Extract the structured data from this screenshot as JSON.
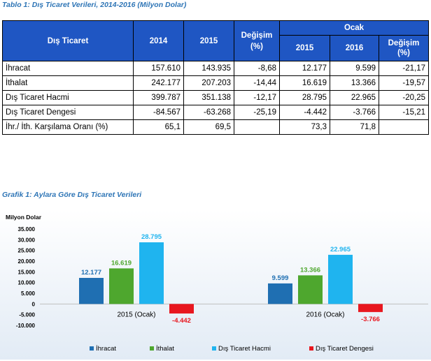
{
  "table": {
    "caption": "Tablo 1: Dış Ticaret Verileri, 2014-2016 (Milyon Dolar)",
    "headers": {
      "category": "Dış Ticaret",
      "y2014": "2014",
      "y2015": "2015",
      "change_top": "Değişim",
      "change_bottom": "(%)",
      "jan_group": "Ocak",
      "jan2015": "2015",
      "jan2016": "2016",
      "jan_change_top": "Değişim",
      "jan_change_bottom": "(%)"
    },
    "rows": [
      {
        "label": "İhracat",
        "y2014": "157.610",
        "y2015": "143.935",
        "change": "-8,68",
        "jan2015": "12.177",
        "jan2016": "9.599",
        "jan_change": "-21,17"
      },
      {
        "label": "İthalat",
        "y2014": "242.177",
        "y2015": "207.203",
        "change": "-14,44",
        "jan2015": "16.619",
        "jan2016": "13.366",
        "jan_change": "-19,57"
      },
      {
        "label": "Dış Ticaret Hacmi",
        "y2014": "399.787",
        "y2015": "351.138",
        "change": "-12,17",
        "jan2015": "28.795",
        "jan2016": "22.965",
        "jan_change": "-20,25"
      },
      {
        "label": "Dış Ticaret Dengesi",
        "y2014": "-84.567",
        "y2015": "-63.268",
        "change": "-25,19",
        "jan2015": "-4.442",
        "jan2016": "-3.766",
        "jan_change": "-15,21"
      },
      {
        "label": "İhr./ İth. Karşılama Oranı (%)",
        "y2014": "65,1",
        "y2015": "69,5",
        "change": "",
        "jan2015": "73,3",
        "jan2016": "71,8",
        "jan_change": ""
      }
    ]
  },
  "chart_caption": "Grafik 1: Aylara Göre Dış Ticaret Verileri",
  "chart_data": {
    "type": "bar",
    "title": "",
    "ylabel": "Milyon Dolar",
    "xlabel": "",
    "ylim": [
      -10000,
      35000
    ],
    "yticks": [
      35000,
      30000,
      25000,
      20000,
      15000,
      10000,
      5000,
      0,
      -5000,
      -10000
    ],
    "ytick_labels": [
      "35.000",
      "30.000",
      "25.000",
      "20.000",
      "15.000",
      "10.000",
      "5.000",
      "0",
      "-5.000",
      "-10.000"
    ],
    "categories": [
      "2015 (Ocak)",
      "2016 (Ocak)"
    ],
    "legend_position": "bottom",
    "series": [
      {
        "name": "İhracat",
        "color": "#1f6fb2",
        "label_color": "#1f6fb2",
        "values": [
          12177,
          9599
        ],
        "labels": [
          "12.177",
          "9.599"
        ]
      },
      {
        "name": "İthalat",
        "color": "#4ea72e",
        "label_color": "#4ea72e",
        "values": [
          16619,
          13366
        ],
        "labels": [
          "16.619",
          "13.366"
        ]
      },
      {
        "name": "Dış Ticaret Hacmi",
        "color": "#1fb4ef",
        "label_color": "#1fb4ef",
        "values": [
          28795,
          22965
        ],
        "labels": [
          "28.795",
          "22.965"
        ]
      },
      {
        "name": "Dış Ticaret Dengesi",
        "color": "#e8171f",
        "label_color": "#e8171f",
        "values": [
          -4442,
          -3766
        ],
        "labels": [
          "-4.442",
          "-3.766"
        ]
      }
    ]
  }
}
